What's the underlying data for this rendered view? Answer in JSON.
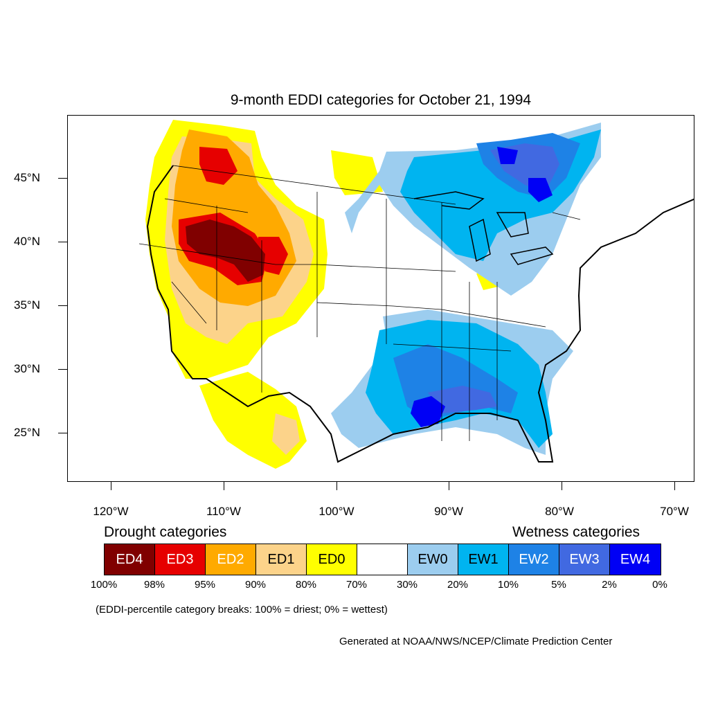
{
  "title": "9-month EDDI categories for October 21, 1994",
  "lat_labels": [
    "45°N",
    "40°N",
    "35°N",
    "30°N",
    "25°N"
  ],
  "lon_labels": [
    "120°W",
    "110°W",
    "100°W",
    "90°W",
    "80°W",
    "70°W"
  ],
  "legend": {
    "drought_heading": "Drought categories",
    "wetness_heading": "Wetness categories",
    "categories": [
      {
        "label": "ED4",
        "color": "#800000",
        "text_color": "#ffffff"
      },
      {
        "label": "ED3",
        "color": "#e60000",
        "text_color": "#ffffff"
      },
      {
        "label": "ED2",
        "color": "#ffaa00",
        "text_color": "#ffffff"
      },
      {
        "label": "ED1",
        "color": "#fcd38a",
        "text_color": "#000000"
      },
      {
        "label": "ED0",
        "color": "#ffff00",
        "text_color": "#000000"
      },
      {
        "label": "",
        "color": "#ffffff",
        "text_color": "#000000"
      },
      {
        "label": "EW0",
        "color": "#9ccdef",
        "text_color": "#000000"
      },
      {
        "label": "EW1",
        "color": "#00b4f0",
        "text_color": "#000000"
      },
      {
        "label": "EW2",
        "color": "#1e82e6",
        "text_color": "#ffffff"
      },
      {
        "label": "EW3",
        "color": "#4169e1",
        "text_color": "#ffffff"
      },
      {
        "label": "EW4",
        "color": "#0000f5",
        "text_color": "#ffffff"
      }
    ],
    "breaks": [
      "100%",
      "98%",
      "95%",
      "90%",
      "80%",
      "70%",
      "30%",
      "20%",
      "10%",
      "5%",
      "2%",
      "0%"
    ]
  },
  "note": "(EDDI-percentile category breaks: 100% = driest; 0% = wettest)",
  "credit": "Generated at NOAA/NWS/NCEP/Climate Prediction Center"
}
